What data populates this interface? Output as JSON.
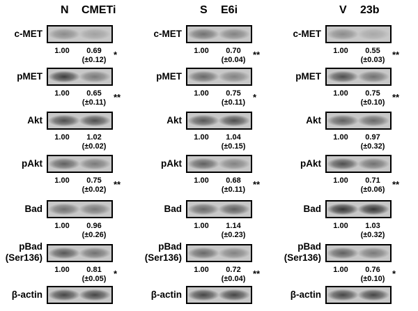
{
  "panels": [
    {
      "headers": [
        "N",
        "CMETi"
      ],
      "rows": [
        {
          "label": "c-MET",
          "ctrl": "1.00",
          "treat": "0.69",
          "sd": "(±0.12)",
          "sig": "*",
          "band": [
            0.35,
            0.22
          ]
        },
        {
          "label": "pMET",
          "ctrl": "1.00",
          "treat": "0.65",
          "sd": "(±0.11)",
          "sig": "**",
          "band": [
            0.8,
            0.45
          ]
        },
        {
          "label": "Akt",
          "ctrl": "1.00",
          "treat": "1.02",
          "sd": "(±0.02)",
          "sig": "",
          "band": [
            0.7,
            0.7
          ]
        },
        {
          "label": "pAkt",
          "ctrl": "1.00",
          "treat": "0.75",
          "sd": "(±0.02)",
          "sig": "**",
          "band": [
            0.6,
            0.45
          ]
        },
        {
          "label": "Bad",
          "ctrl": "1.00",
          "treat": "0.96",
          "sd": "(±0.26)",
          "sig": "",
          "band": [
            0.5,
            0.45
          ]
        },
        {
          "label": "pBad\n(Ser136)",
          "ctrl": "1.00",
          "treat": "0.81",
          "sd": "(±0.05)",
          "sig": "*",
          "band": [
            0.65,
            0.5
          ]
        },
        {
          "label": "β-actin",
          "ctrl": "",
          "treat": "",
          "sd": "",
          "sig": "",
          "band": [
            0.75,
            0.75
          ]
        }
      ]
    },
    {
      "headers": [
        "S",
        "E6i"
      ],
      "rows": [
        {
          "label": "c-MET",
          "ctrl": "1.00",
          "treat": "0.70",
          "sd": "(±0.04)",
          "sig": "**",
          "band": [
            0.5,
            0.4
          ]
        },
        {
          "label": "pMET",
          "ctrl": "1.00",
          "treat": "0.75",
          "sd": "(±0.11)",
          "sig": "*",
          "band": [
            0.55,
            0.4
          ]
        },
        {
          "label": "Akt",
          "ctrl": "1.00",
          "treat": "1.04",
          "sd": "(±0.15)",
          "sig": "",
          "band": [
            0.65,
            0.7
          ]
        },
        {
          "label": "pAkt",
          "ctrl": "1.00",
          "treat": "0.68",
          "sd": "(±0.11)",
          "sig": "**",
          "band": [
            0.6,
            0.4
          ]
        },
        {
          "label": "Bad",
          "ctrl": "1.00",
          "treat": "1.14",
          "sd": "(±0.23)",
          "sig": "",
          "band": [
            0.55,
            0.6
          ]
        },
        {
          "label": "pBad\n(Ser136)",
          "ctrl": "1.00",
          "treat": "0.72",
          "sd": "(±0.04)",
          "sig": "**",
          "band": [
            0.55,
            0.4
          ]
        },
        {
          "label": "β-actin",
          "ctrl": "",
          "treat": "",
          "sd": "",
          "sig": "",
          "band": [
            0.75,
            0.75
          ]
        }
      ]
    },
    {
      "headers": [
        "V",
        "23b"
      ],
      "rows": [
        {
          "label": "c-MET",
          "ctrl": "1.00",
          "treat": "0.55",
          "sd": "(±0.03)",
          "sig": "**",
          "band": [
            0.35,
            0.18
          ]
        },
        {
          "label": "pMET",
          "ctrl": "1.00",
          "treat": "0.75",
          "sd": "(±0.10)",
          "sig": "**",
          "band": [
            0.7,
            0.5
          ]
        },
        {
          "label": "Akt",
          "ctrl": "1.00",
          "treat": "0.97",
          "sd": "(±0.32)",
          "sig": "",
          "band": [
            0.6,
            0.55
          ]
        },
        {
          "label": "pAkt",
          "ctrl": "1.00",
          "treat": "0.71",
          "sd": "(±0.06)",
          "sig": "**",
          "band": [
            0.7,
            0.5
          ]
        },
        {
          "label": "Bad",
          "ctrl": "1.00",
          "treat": "1.03",
          "sd": "(±0.32)",
          "sig": "",
          "band": [
            0.85,
            0.85
          ]
        },
        {
          "label": "pBad\n(Ser136)",
          "ctrl": "1.00",
          "treat": "0.76",
          "sd": "(±0.10)",
          "sig": "*",
          "band": [
            0.6,
            0.45
          ]
        },
        {
          "label": "β-actin",
          "ctrl": "",
          "treat": "",
          "sd": "",
          "sig": "",
          "band": [
            0.75,
            0.75
          ]
        }
      ]
    }
  ]
}
